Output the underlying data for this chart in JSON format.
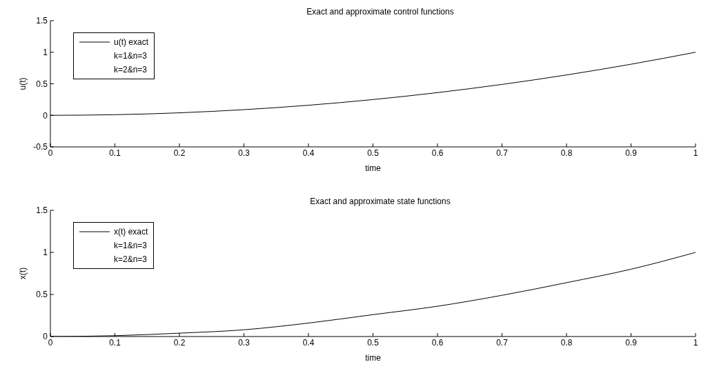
{
  "chart_data": [
    {
      "type": "line",
      "title": "Exact and approximate control functions",
      "xlabel": "time",
      "ylabel": "u(t)",
      "x": [
        0,
        0.1,
        0.2,
        0.3,
        0.4,
        0.5,
        0.6,
        0.7,
        0.8,
        0.9,
        1
      ],
      "xlim": [
        0,
        1
      ],
      "xticks": [
        0,
        0.1,
        0.2,
        0.3,
        0.4,
        0.5,
        0.6,
        0.7,
        0.8,
        0.9,
        1
      ],
      "ylim": [
        -0.5,
        1.5
      ],
      "yticks": [
        -0.5,
        0,
        0.5,
        1,
        1.5
      ],
      "legend": "top left",
      "line_style": "solid",
      "series": [
        {
          "name": "u(t) exact",
          "color": "#000000",
          "values": [
            0,
            0.01,
            0.04,
            0.09,
            0.16,
            0.25,
            0.36,
            0.49,
            0.64,
            0.81,
            1
          ]
        },
        {
          "name": "k=1&n=3",
          "values": [
            null,
            null,
            null,
            null,
            null,
            null,
            null,
            null,
            null,
            null,
            null
          ]
        },
        {
          "name": "k=2&n=3",
          "values": [
            null,
            null,
            null,
            null,
            null,
            null,
            null,
            null,
            null,
            null,
            null
          ]
        }
      ]
    },
    {
      "type": "line",
      "title": "Exact and approximate state functions",
      "xlabel": "time",
      "ylabel": "x(t)",
      "x": [
        0,
        0.1,
        0.2,
        0.3,
        0.4,
        0.5,
        0.6,
        0.7,
        0.8,
        0.9,
        1
      ],
      "xlim": [
        0,
        1
      ],
      "xticks": [
        0,
        0.1,
        0.2,
        0.3,
        0.4,
        0.5,
        0.6,
        0.7,
        0.8,
        0.9,
        1
      ],
      "ylim": [
        0,
        1.5
      ],
      "yticks": [
        0,
        0.5,
        1,
        1.5
      ],
      "legend": "top left",
      "line_style": "solid",
      "series": [
        {
          "name": "x(t) exact",
          "color": "#000000",
          "values": [
            0,
            0.01,
            0.04,
            0.08,
            0.16,
            0.26,
            0.36,
            0.49,
            0.64,
            0.8,
            1
          ]
        },
        {
          "name": "k=1&n=3",
          "values": [
            null,
            null,
            null,
            null,
            null,
            null,
            null,
            null,
            null,
            null,
            null
          ]
        },
        {
          "name": "k=2&n=3",
          "values": [
            null,
            null,
            null,
            null,
            null,
            null,
            null,
            null,
            null,
            null,
            null
          ]
        }
      ]
    }
  ]
}
